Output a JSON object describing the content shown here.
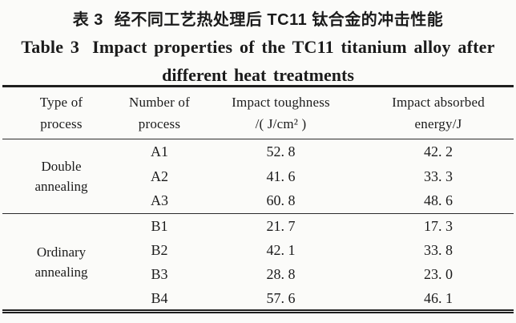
{
  "page": {
    "background_color": "#fbfbf9",
    "text_color": "#1b1b1b",
    "rule_color": "#1f1f1f"
  },
  "caption": {
    "zh_label": "表 3",
    "zh_text": "经不同工艺热处理后 TC11 钛合金的冲击性能",
    "en_label": "Table 3",
    "en_text_line1": "Impact properties of the TC11 titanium alloy after",
    "en_text_line2": "different heat treatments"
  },
  "table": {
    "columns": [
      {
        "line1": "Type of",
        "line2": "process"
      },
      {
        "line1": "Number of",
        "line2": "process"
      },
      {
        "line1": "Impact toughness",
        "line2": "/( J/cm² )"
      },
      {
        "line1": "Impact absorbed",
        "line2": "energy/J"
      }
    ],
    "groups": [
      {
        "type_line1": "Double",
        "type_line2": "annealing",
        "rows": [
          {
            "number": "A1",
            "toughness": "52. 8",
            "energy": "42. 2"
          },
          {
            "number": "A2",
            "toughness": "41. 6",
            "energy": "33. 3"
          },
          {
            "number": "A3",
            "toughness": "60. 8",
            "energy": "48. 6"
          }
        ]
      },
      {
        "type_line1": "Ordinary",
        "type_line2": "annealing",
        "rows": [
          {
            "number": "B1",
            "toughness": "21. 7",
            "energy": "17. 3"
          },
          {
            "number": "B2",
            "toughness": "42. 1",
            "energy": "33. 8"
          },
          {
            "number": "B3",
            "toughness": "28. 8",
            "energy": "23. 0"
          },
          {
            "number": "B4",
            "toughness": "57. 6",
            "energy": "46. 1"
          }
        ]
      }
    ]
  }
}
